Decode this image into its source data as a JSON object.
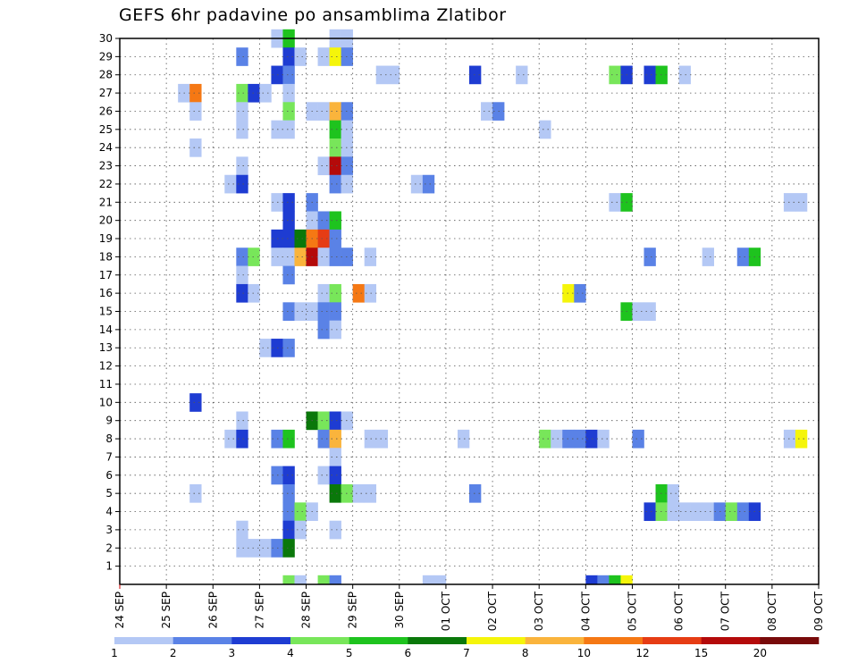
{
  "chart_data": {
    "type": "heatmap",
    "title": "GEFS 6hr padavine po ansamblima Zlatibor",
    "xlabel": "",
    "ylabel": "",
    "x_ticks": [
      "24 SEP",
      "25 SEP",
      "26 SEP",
      "27 SEP",
      "28 SEP",
      "29 SEP",
      "30 SEP",
      "01 OCT",
      "02 OCT",
      "03 OCT",
      "04 OCT",
      "05 OCT",
      "06 OCT",
      "07 OCT",
      "08 OCT",
      "09 OCT"
    ],
    "y_ticks": [
      1,
      2,
      3,
      4,
      5,
      6,
      7,
      8,
      9,
      10,
      11,
      12,
      13,
      14,
      15,
      16,
      17,
      18,
      19,
      20,
      21,
      22,
      23,
      24,
      25,
      26,
      27,
      28,
      29,
      30
    ],
    "ylim": [
      0,
      30
    ],
    "xlim_steps": [
      0,
      60
    ],
    "time_step_hours": 6,
    "grid": true,
    "levels": [
      "1",
      "2",
      "3",
      "4",
      "5",
      "6",
      "7",
      "8",
      "10",
      "12",
      "15",
      "20"
    ],
    "colors": [
      "#b4c8f5",
      "#5a82e6",
      "#1e3cd2",
      "#78e65a",
      "#1ec31e",
      "#0a780a",
      "#f5f50a",
      "#fab43c",
      "#f57814",
      "#e63c14",
      "#b40a0a",
      "#780a0a"
    ],
    "cells": [
      [
        13,
        30,
        1
      ],
      [
        14,
        30,
        5
      ],
      [
        18,
        30,
        1
      ],
      [
        19,
        30,
        1
      ],
      [
        10,
        29,
        2
      ],
      [
        14,
        29,
        3
      ],
      [
        15,
        29,
        1
      ],
      [
        17,
        29,
        1
      ],
      [
        18,
        29,
        7
      ],
      [
        19,
        29,
        2
      ],
      [
        13,
        28,
        3
      ],
      [
        14,
        28,
        2
      ],
      [
        22,
        28,
        1
      ],
      [
        23,
        28,
        1
      ],
      [
        30,
        28,
        3
      ],
      [
        34,
        28,
        1
      ],
      [
        42,
        28,
        4
      ],
      [
        43,
        28,
        3
      ],
      [
        45,
        28,
        3
      ],
      [
        46,
        28,
        5
      ],
      [
        48,
        28,
        1
      ],
      [
        5,
        27,
        1
      ],
      [
        6,
        27,
        9
      ],
      [
        10,
        27,
        4
      ],
      [
        11,
        27,
        3
      ],
      [
        12,
        27,
        1
      ],
      [
        14,
        27,
        1
      ],
      [
        6,
        26,
        1
      ],
      [
        10,
        26,
        1
      ],
      [
        14,
        26,
        4
      ],
      [
        16,
        26,
        1
      ],
      [
        17,
        26,
        1
      ],
      [
        18,
        26,
        8
      ],
      [
        19,
        26,
        2
      ],
      [
        31,
        26,
        1
      ],
      [
        32,
        26,
        2
      ],
      [
        10,
        25,
        1
      ],
      [
        13,
        25,
        1
      ],
      [
        14,
        25,
        1
      ],
      [
        18,
        25,
        5
      ],
      [
        19,
        25,
        1
      ],
      [
        36,
        25,
        1
      ],
      [
        6,
        24,
        1
      ],
      [
        18,
        24,
        4
      ],
      [
        19,
        24,
        1
      ],
      [
        10,
        23,
        1
      ],
      [
        17,
        23,
        1
      ],
      [
        18,
        23,
        11
      ],
      [
        19,
        23,
        2
      ],
      [
        9,
        22,
        1
      ],
      [
        10,
        22,
        3
      ],
      [
        18,
        22,
        2
      ],
      [
        19,
        22,
        1
      ],
      [
        25,
        22,
        1
      ],
      [
        26,
        22,
        2
      ],
      [
        13,
        21,
        1
      ],
      [
        14,
        21,
        3
      ],
      [
        16,
        21,
        2
      ],
      [
        42,
        21,
        1
      ],
      [
        43,
        21,
        5
      ],
      [
        57,
        21,
        1
      ],
      [
        58,
        21,
        1
      ],
      [
        14,
        20,
        3
      ],
      [
        16,
        20,
        1
      ],
      [
        17,
        20,
        2
      ],
      [
        18,
        20,
        5
      ],
      [
        13,
        19,
        3
      ],
      [
        14,
        19,
        3
      ],
      [
        15,
        19,
        6
      ],
      [
        16,
        19,
        9
      ],
      [
        17,
        19,
        10
      ],
      [
        18,
        19,
        2
      ],
      [
        10,
        18,
        2
      ],
      [
        11,
        18,
        4
      ],
      [
        13,
        18,
        1
      ],
      [
        14,
        18,
        1
      ],
      [
        15,
        18,
        8
      ],
      [
        16,
        18,
        11
      ],
      [
        17,
        18,
        1
      ],
      [
        18,
        18,
        2
      ],
      [
        19,
        18,
        2
      ],
      [
        21,
        18,
        1
      ],
      [
        45,
        18,
        2
      ],
      [
        50,
        18,
        1
      ],
      [
        53,
        18,
        2
      ],
      [
        54,
        18,
        5
      ],
      [
        10,
        17,
        1
      ],
      [
        14,
        17,
        2
      ],
      [
        10,
        16,
        3
      ],
      [
        11,
        16,
        1
      ],
      [
        17,
        16,
        1
      ],
      [
        18,
        16,
        4
      ],
      [
        20,
        16,
        9
      ],
      [
        21,
        16,
        1
      ],
      [
        38,
        16,
        7
      ],
      [
        39,
        16,
        2
      ],
      [
        14,
        15,
        2
      ],
      [
        15,
        15,
        1
      ],
      [
        16,
        15,
        1
      ],
      [
        17,
        15,
        2
      ],
      [
        18,
        15,
        2
      ],
      [
        43,
        15,
        5
      ],
      [
        44,
        15,
        1
      ],
      [
        45,
        15,
        1
      ],
      [
        17,
        14,
        2
      ],
      [
        18,
        14,
        1
      ],
      [
        12,
        13,
        1
      ],
      [
        13,
        13,
        3
      ],
      [
        14,
        13,
        2
      ],
      [
        6,
        10,
        3
      ],
      [
        10,
        9,
        1
      ],
      [
        16,
        9,
        6
      ],
      [
        17,
        9,
        4
      ],
      [
        18,
        9,
        3
      ],
      [
        19,
        9,
        1
      ],
      [
        9,
        8,
        1
      ],
      [
        10,
        8,
        3
      ],
      [
        13,
        8,
        2
      ],
      [
        14,
        8,
        5
      ],
      [
        17,
        8,
        2
      ],
      [
        18,
        8,
        8
      ],
      [
        21,
        8,
        1
      ],
      [
        22,
        8,
        1
      ],
      [
        29,
        8,
        1
      ],
      [
        36,
        8,
        4
      ],
      [
        37,
        8,
        1
      ],
      [
        38,
        8,
        2
      ],
      [
        39,
        8,
        2
      ],
      [
        40,
        8,
        3
      ],
      [
        41,
        8,
        1
      ],
      [
        44,
        8,
        2
      ],
      [
        57,
        8,
        1
      ],
      [
        58,
        8,
        7
      ],
      [
        18,
        7,
        1
      ],
      [
        13,
        6,
        2
      ],
      [
        14,
        6,
        3
      ],
      [
        17,
        6,
        1
      ],
      [
        18,
        6,
        3
      ],
      [
        6,
        5,
        1
      ],
      [
        14,
        5,
        2
      ],
      [
        18,
        5,
        6
      ],
      [
        19,
        5,
        4
      ],
      [
        20,
        5,
        1
      ],
      [
        21,
        5,
        1
      ],
      [
        30,
        5,
        2
      ],
      [
        46,
        5,
        5
      ],
      [
        47,
        5,
        1
      ],
      [
        14,
        4,
        2
      ],
      [
        15,
        4,
        4
      ],
      [
        16,
        4,
        1
      ],
      [
        45,
        4,
        3
      ],
      [
        46,
        4,
        4
      ],
      [
        47,
        4,
        1
      ],
      [
        48,
        4,
        1
      ],
      [
        49,
        4,
        1
      ],
      [
        50,
        4,
        1
      ],
      [
        51,
        4,
        2
      ],
      [
        52,
        4,
        4
      ],
      [
        53,
        4,
        2
      ],
      [
        54,
        4,
        3
      ],
      [
        10,
        3,
        1
      ],
      [
        14,
        3,
        3
      ],
      [
        15,
        3,
        1
      ],
      [
        18,
        3,
        1
      ],
      [
        10,
        2,
        1
      ],
      [
        11,
        2,
        1
      ],
      [
        12,
        2,
        1
      ],
      [
        13,
        2,
        2
      ],
      [
        14,
        2,
        6
      ],
      [
        14,
        0,
        4
      ],
      [
        15,
        0,
        1
      ],
      [
        17,
        0,
        4
      ],
      [
        18,
        0,
        2
      ],
      [
        26,
        0,
        1
      ],
      [
        27,
        0,
        1
      ],
      [
        40,
        0,
        3
      ],
      [
        41,
        0,
        2
      ],
      [
        42,
        0,
        5
      ],
      [
        43,
        0,
        7
      ]
    ]
  }
}
